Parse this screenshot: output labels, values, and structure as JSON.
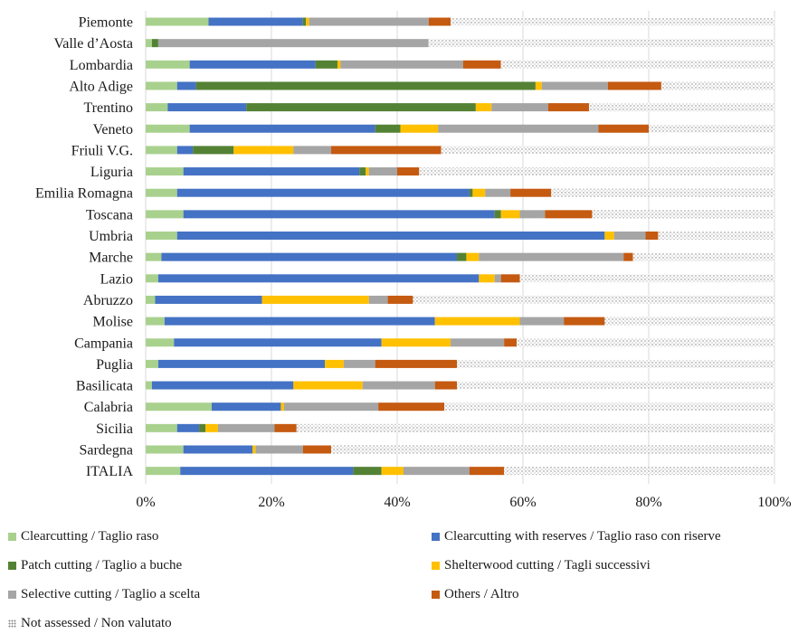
{
  "chart_data": {
    "type": "bar",
    "orientation": "horizontal",
    "stacked": "percent",
    "categories": [
      "Piemonte",
      "Valle d’Aosta",
      "Lombardia",
      "Alto Adige",
      "Trentino",
      "Veneto",
      "Friuli V.G.",
      "Liguria",
      "Emilia Romagna",
      "Toscana",
      "Umbria",
      "Marche",
      "Lazio",
      "Abruzzo",
      "Molise",
      "Campania",
      "Puglia",
      "Basilicata",
      "Calabria",
      "Sicilia",
      "Sardegna",
      "ITALIA"
    ],
    "x_ticks": [
      "0%",
      "20%",
      "40%",
      "60%",
      "80%",
      "100%"
    ],
    "xlim": [
      0,
      100
    ],
    "grid": "vertical",
    "legend_position": "bottom",
    "series": [
      {
        "name": "Clearcutting / Taglio raso",
        "color": "#a9d18e",
        "pattern": "solid",
        "values": [
          10.0,
          1.0,
          7.0,
          5.0,
          3.5,
          7.0,
          5.0,
          6.0,
          5.0,
          6.0,
          5.0,
          2.5,
          2.0,
          1.5,
          3.0,
          4.5,
          2.0,
          1.0,
          10.5,
          5.0,
          6.0,
          5.5
        ]
      },
      {
        "name": "Clearcutting with reserves / Taglio raso con riserve",
        "color": "#4472c4",
        "pattern": "solid",
        "values": [
          15.0,
          0.0,
          20.0,
          3.0,
          12.5,
          29.5,
          2.5,
          28.0,
          46.5,
          49.5,
          68.0,
          47.0,
          51.0,
          17.0,
          43.0,
          33.0,
          26.5,
          22.5,
          11.0,
          3.5,
          11.0,
          27.5
        ]
      },
      {
        "name": "Patch cutting / Taglio a buche",
        "color": "#548235",
        "pattern": "solid",
        "values": [
          0.5,
          1.0,
          3.5,
          54.0,
          36.5,
          4.0,
          6.5,
          1.0,
          0.5,
          1.0,
          0.0,
          1.5,
          0.0,
          0.0,
          0.0,
          0.0,
          0.0,
          0.0,
          0.0,
          1.0,
          0.0,
          4.5
        ]
      },
      {
        "name": "Shelterwood cutting / Tagli successivi",
        "color": "#ffc000",
        "pattern": "solid",
        "values": [
          0.5,
          0.0,
          0.5,
          1.0,
          2.5,
          6.0,
          9.5,
          0.5,
          2.0,
          3.0,
          1.5,
          2.0,
          2.5,
          17.0,
          13.5,
          11.0,
          3.0,
          11.0,
          0.5,
          2.0,
          0.5,
          3.5
        ]
      },
      {
        "name": "Selective cutting / Taglio a scelta",
        "color": "#a5a5a5",
        "pattern": "solid",
        "values": [
          19.0,
          43.0,
          19.5,
          10.5,
          9.0,
          25.5,
          6.0,
          4.5,
          4.0,
          4.0,
          5.0,
          23.0,
          1.0,
          3.0,
          7.0,
          8.5,
          5.0,
          11.5,
          15.0,
          9.0,
          7.5,
          10.5
        ]
      },
      {
        "name": "Others / Altro",
        "color": "#c55a11",
        "pattern": "solid",
        "values": [
          3.5,
          0.0,
          6.0,
          8.5,
          6.5,
          8.0,
          17.5,
          3.5,
          6.5,
          7.5,
          2.0,
          1.5,
          3.0,
          4.0,
          6.5,
          2.0,
          13.0,
          3.5,
          10.5,
          3.5,
          4.5,
          5.5
        ]
      },
      {
        "name": "Not assessed / Non valutato",
        "color": "#bfbfbf",
        "pattern": "dots",
        "values": [
          51.5,
          55.0,
          43.5,
          18.0,
          29.5,
          20.0,
          53.0,
          56.5,
          35.5,
          29.0,
          18.5,
          22.5,
          40.5,
          57.5,
          27.0,
          41.0,
          50.5,
          50.5,
          52.5,
          76.0,
          70.5,
          43.0
        ]
      }
    ]
  }
}
